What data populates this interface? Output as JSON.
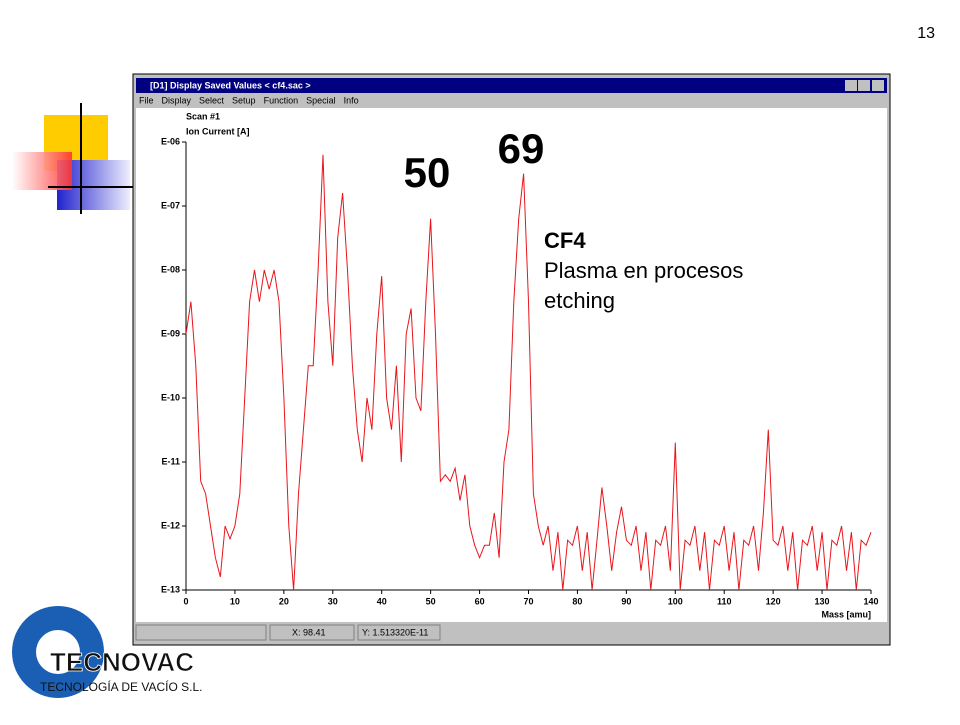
{
  "slide_number": "13",
  "window": {
    "title": "[D1] Display Saved Values  < cf4.sac >",
    "menu": [
      "File",
      "Display",
      "Select",
      "Setup",
      "Function",
      "Special",
      "Info"
    ],
    "status": {
      "x": "X:  98.41",
      "y": "Y:  1.513320E-11"
    }
  },
  "logo": {
    "name": "TECNOVAC",
    "tagline": "TECNOLOGÍA DE VACÍO S.L."
  },
  "chart_data": {
    "type": "line",
    "log_y": true,
    "color": "#e8151b",
    "subtitle": "Scan #1",
    "y_label": "Ion Current [A]",
    "x_label": "Mass [amu]",
    "annotations": [
      "50",
      "69",
      "CF4",
      "Plasma en procesos",
      "etching"
    ],
    "xlim": [
      0,
      140
    ],
    "xticks": [
      0,
      10,
      20,
      30,
      40,
      50,
      60,
      70,
      80,
      90,
      100,
      110,
      120,
      130,
      140
    ],
    "ylim": [
      1e-13,
      1e-06
    ],
    "yticks": [
      {
        "value": 1e-13,
        "label": "E-13"
      },
      {
        "value": 1e-12,
        "label": "E-12"
      },
      {
        "value": 1e-11,
        "label": "E-11"
      },
      {
        "value": 1e-10,
        "label": "E-10"
      },
      {
        "value": 1e-09,
        "label": "E-09"
      },
      {
        "value": 1e-08,
        "label": "E-08"
      },
      {
        "value": 1e-07,
        "label": "E-07"
      },
      {
        "value": 1e-06,
        "label": "E-06"
      }
    ],
    "x": [
      0,
      1,
      2,
      3,
      4,
      5,
      6,
      7,
      8,
      9,
      10,
      11,
      12,
      13,
      14,
      15,
      16,
      17,
      18,
      19,
      20,
      21,
      22,
      23,
      24,
      25,
      26,
      27,
      28,
      29,
      30,
      31,
      32,
      33,
      34,
      35,
      36,
      37,
      38,
      39,
      40,
      41,
      42,
      43,
      44,
      45,
      46,
      47,
      48,
      49,
      50,
      51,
      52,
      53,
      54,
      55,
      56,
      57,
      58,
      59,
      60,
      61,
      62,
      63,
      64,
      65,
      66,
      67,
      68,
      69,
      70,
      71,
      72,
      73,
      74,
      75,
      76,
      77,
      78,
      79,
      80,
      81,
      82,
      83,
      84,
      85,
      86,
      87,
      88,
      89,
      90,
      91,
      92,
      93,
      94,
      95,
      96,
      97,
      98,
      99,
      100,
      101,
      102,
      103,
      104,
      105,
      106,
      107,
      108,
      109,
      110,
      111,
      112,
      113,
      114,
      115,
      116,
      117,
      118,
      119,
      120,
      121,
      122,
      123,
      124,
      125,
      126,
      127,
      128,
      129,
      130,
      131,
      132,
      133,
      134,
      135,
      136,
      137,
      138,
      139,
      140
    ],
    "values": [
      1e-09,
      3.2e-09,
      3.2e-10,
      5e-12,
      3.2e-12,
      1e-12,
      3.2e-13,
      1.6e-13,
      1e-12,
      6.3e-13,
      1e-12,
      3.2e-12,
      1e-10,
      3.2e-09,
      1e-08,
      3.2e-09,
      1e-08,
      5e-09,
      1e-08,
      3.2e-09,
      1e-10,
      1e-12,
      1e-13,
      3.2e-12,
      3.2e-11,
      3.2e-10,
      3.2e-10,
      1e-08,
      6.3e-07,
      3.2e-09,
      3.2e-10,
      3.2e-08,
      1.6e-07,
      1e-08,
      3.2e-10,
      3.2e-11,
      1e-11,
      1e-10,
      3.2e-11,
      1e-09,
      8e-09,
      1e-10,
      3.2e-11,
      3.2e-10,
      1e-11,
      1e-09,
      2.5e-09,
      1e-10,
      6.3e-11,
      3.2e-09,
      6.3e-08,
      1e-09,
      5e-12,
      6.3e-12,
      5e-12,
      8e-12,
      2.5e-12,
      6.3e-12,
      1e-12,
      5e-13,
      3.2e-13,
      5e-13,
      5e-13,
      1.6e-12,
      3.2e-13,
      1e-11,
      3.2e-11,
      3.2e-09,
      6.3e-08,
      3.2e-07,
      3.2e-09,
      3.2e-12,
      1e-12,
      5e-13,
      1e-12,
      2e-13,
      8e-13,
      1e-13,
      6e-13,
      5e-13,
      1e-12,
      2e-13,
      8e-13,
      1e-13,
      6e-13,
      4e-12,
      1e-12,
      2e-13,
      8e-13,
      2e-12,
      6e-13,
      5e-13,
      1e-12,
      2e-13,
      8e-13,
      1e-13,
      6e-13,
      5e-13,
      1e-12,
      2e-13,
      2e-11,
      1e-13,
      6e-13,
      5e-13,
      1e-12,
      2e-13,
      8e-13,
      1e-13,
      6e-13,
      5e-13,
      1e-12,
      2e-13,
      8e-13,
      1e-13,
      6e-13,
      5e-13,
      1e-12,
      2e-13,
      1.6e-12,
      3.2e-11,
      6e-13,
      5e-13,
      1e-12,
      2e-13,
      8e-13,
      1e-13,
      6e-13,
      5e-13,
      1e-12,
      2e-13,
      8e-13,
      1e-13,
      6e-13,
      5e-13,
      1e-12,
      2e-13,
      8e-13,
      1e-13,
      6e-13,
      5e-13,
      8e-13
    ]
  }
}
